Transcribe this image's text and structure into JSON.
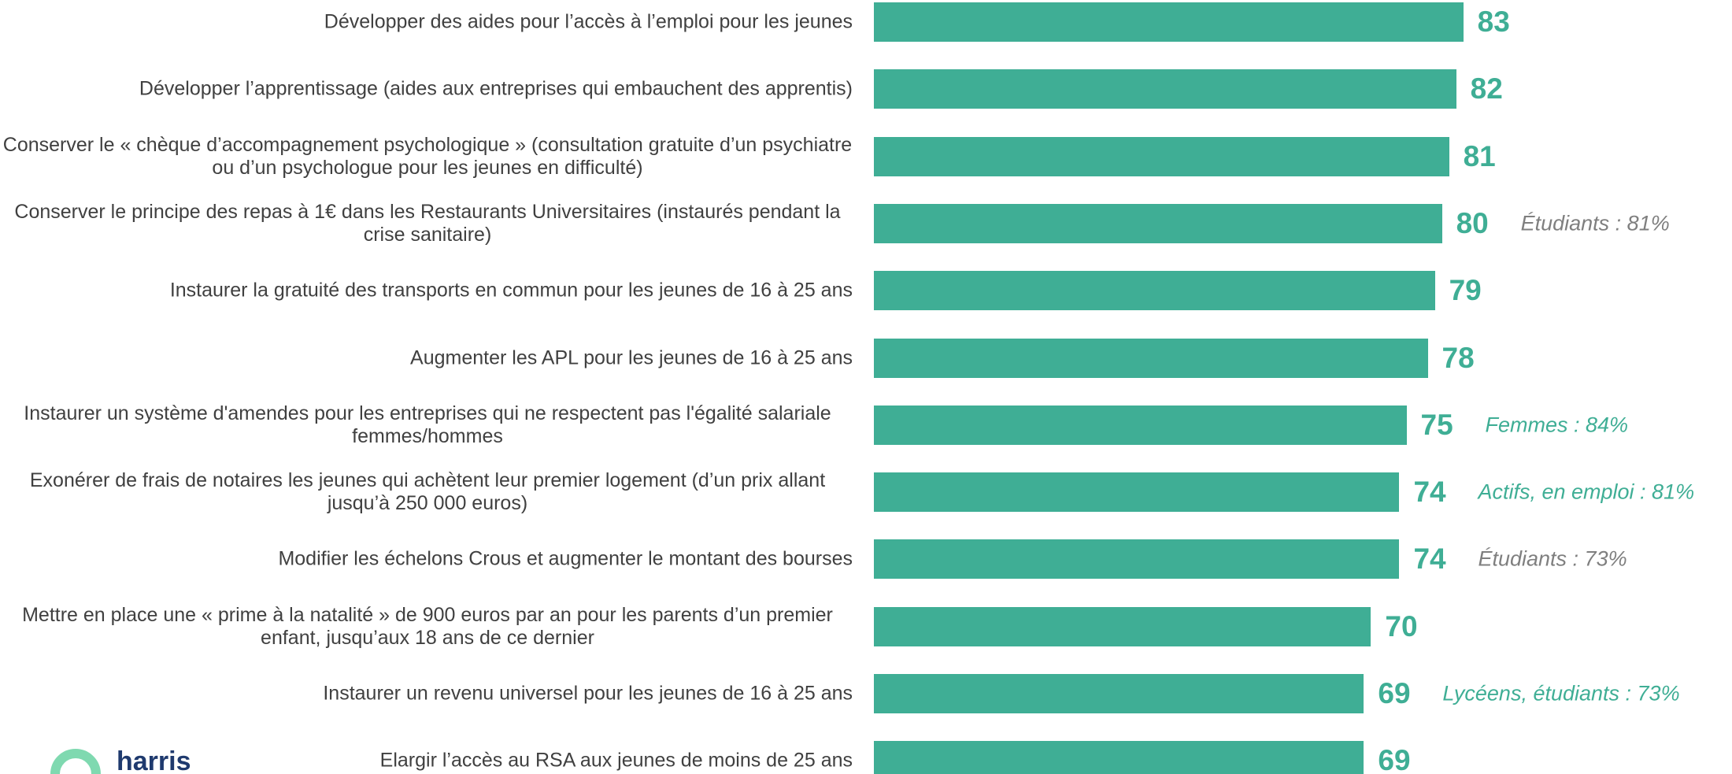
{
  "chart_data": {
    "type": "bar",
    "orientation": "horizontal",
    "categories": [
      "Développer des aides pour l’accès à l’emploi pour les jeunes",
      "Développer l’apprentissage (aides aux entreprises qui embauchent des apprentis)",
      "Conserver le « chèque d’accompagnement psychologique » (consultation gratuite d’un psychiatre ou d’un psychologue pour les jeunes en difficulté)",
      "Conserver le principe des repas à 1€ dans les Restaurants Universitaires (instaurés pendant la crise sanitaire)",
      "Instaurer la gratuité des transports en commun pour les jeunes de 16 à 25 ans",
      "Augmenter les APL pour les jeunes de 16 à 25 ans",
      "Instaurer un système d'amendes pour les entreprises qui ne respectent pas l'égalité salariale femmes/hommes",
      "Exonérer de frais de notaires les jeunes qui achètent leur premier logement (d’un prix allant jusqu’à 250 000 euros)",
      "Modifier les échelons Crous et augmenter le montant des bourses",
      "Mettre en place une « prime à la natalité » de 900 euros par an pour les parents d’un premier enfant, jusqu’aux 18 ans de ce dernier",
      "Instaurer un revenu universel pour les jeunes de 16 à 25 ans",
      "Elargir l’accès au RSA aux jeunes de moins de 25 ans"
    ],
    "values": [
      83,
      82,
      81,
      80,
      79,
      78,
      75,
      74,
      74,
      70,
      69,
      69
    ],
    "color": "#3fae95",
    "xlim": [
      0,
      100
    ],
    "annotations": [
      null,
      null,
      null,
      {
        "text": "Étudiants : 81%",
        "color": "#7f7f7f"
      },
      null,
      null,
      {
        "text": "Femmes : 84%",
        "color": "#3fae95"
      },
      {
        "text": "Actifs, en emploi : 81%",
        "color": "#3fae95"
      },
      {
        "text": "Étudiants : 73%",
        "color": "#7f7f7f"
      },
      null,
      {
        "text": "Lycéens, étudiants : 73%",
        "color": "#3fae95"
      },
      null
    ]
  },
  "logo": "harris"
}
